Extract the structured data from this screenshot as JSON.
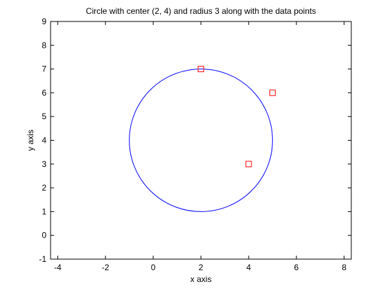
{
  "chart_data": {
    "type": "scatter",
    "title": "Circle with center (2, 4) and radius 3 along with the data points",
    "xlabel": "x axis",
    "ylabel": "y axis",
    "xlim": [
      -4.3,
      8.3
    ],
    "ylim": [
      -1,
      9
    ],
    "xticks": [
      -4,
      -2,
      0,
      2,
      4,
      6,
      8
    ],
    "yticks": [
      -1,
      0,
      1,
      2,
      3,
      4,
      5,
      6,
      7,
      8,
      9
    ],
    "grid": false,
    "circle": {
      "center": [
        2,
        4
      ],
      "radius": 3,
      "color": "#0000ff"
    },
    "points": [
      {
        "x": 2,
        "y": 7
      },
      {
        "x": 5,
        "y": 6
      },
      {
        "x": 4,
        "y": 3
      }
    ],
    "point_marker": "square",
    "point_color": "#ff0000"
  }
}
